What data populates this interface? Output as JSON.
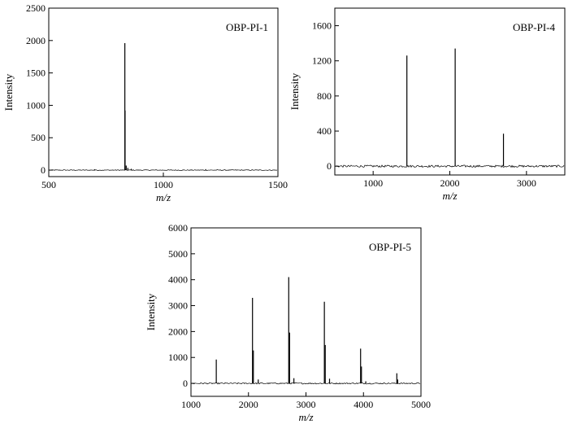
{
  "chart_data": [
    {
      "type": "line",
      "title": "OBP-PI-1",
      "xlabel": "m/z",
      "ylabel": "Intensity",
      "xlim": [
        500,
        1500
      ],
      "ylim": [
        -100,
        2500
      ],
      "xticks": [
        500,
        1000,
        1500
      ],
      "yticks": [
        0,
        500,
        1000,
        1500,
        2000,
        2500
      ],
      "grid": false,
      "peaks": [
        {
          "x": 832,
          "y": 1960
        },
        {
          "x": 833,
          "y": 920
        },
        {
          "x": 838,
          "y": 70
        },
        {
          "x": 845,
          "y": 35
        },
        {
          "x": 860,
          "y": 20
        },
        {
          "x": 700,
          "y": 12
        },
        {
          "x": 1185,
          "y": 15
        }
      ],
      "baseline_noise": 6
    },
    {
      "type": "line",
      "title": "OBP-PI-4",
      "xlabel": "m/z",
      "ylabel": "Intensity",
      "xlim": [
        500,
        3500
      ],
      "ylim": [
        -100,
        1800
      ],
      "xticks": [
        1000,
        2000,
        3000
      ],
      "yticks": [
        0,
        400,
        800,
        1200,
        1600
      ],
      "grid": false,
      "peaks": [
        {
          "x": 1440,
          "y": 1260
        },
        {
          "x": 2070,
          "y": 1340
        },
        {
          "x": 2700,
          "y": 370
        }
      ],
      "baseline_noise": 12
    },
    {
      "type": "line",
      "title": "OBP-PI-5",
      "xlabel": "m/z",
      "ylabel": "Intensity",
      "xlim": [
        1000,
        5000
      ],
      "ylim": [
        -500,
        6000
      ],
      "xticks": [
        1000,
        2000,
        3000,
        4000,
        5000
      ],
      "yticks": [
        0,
        1000,
        2000,
        3000,
        4000,
        5000,
        6000
      ],
      "grid": false,
      "peaks": [
        {
          "x": 1440,
          "y": 920
        },
        {
          "x": 2070,
          "y": 3300
        },
        {
          "x": 2085,
          "y": 1270
        },
        {
          "x": 2170,
          "y": 150
        },
        {
          "x": 2700,
          "y": 4100
        },
        {
          "x": 2715,
          "y": 1960
        },
        {
          "x": 2790,
          "y": 200
        },
        {
          "x": 3320,
          "y": 3150
        },
        {
          "x": 3335,
          "y": 1480
        },
        {
          "x": 3410,
          "y": 180
        },
        {
          "x": 3950,
          "y": 1340
        },
        {
          "x": 3965,
          "y": 650
        },
        {
          "x": 4040,
          "y": 80
        },
        {
          "x": 4580,
          "y": 390
        },
        {
          "x": 4595,
          "y": 150
        }
      ],
      "baseline_noise": 25
    }
  ]
}
